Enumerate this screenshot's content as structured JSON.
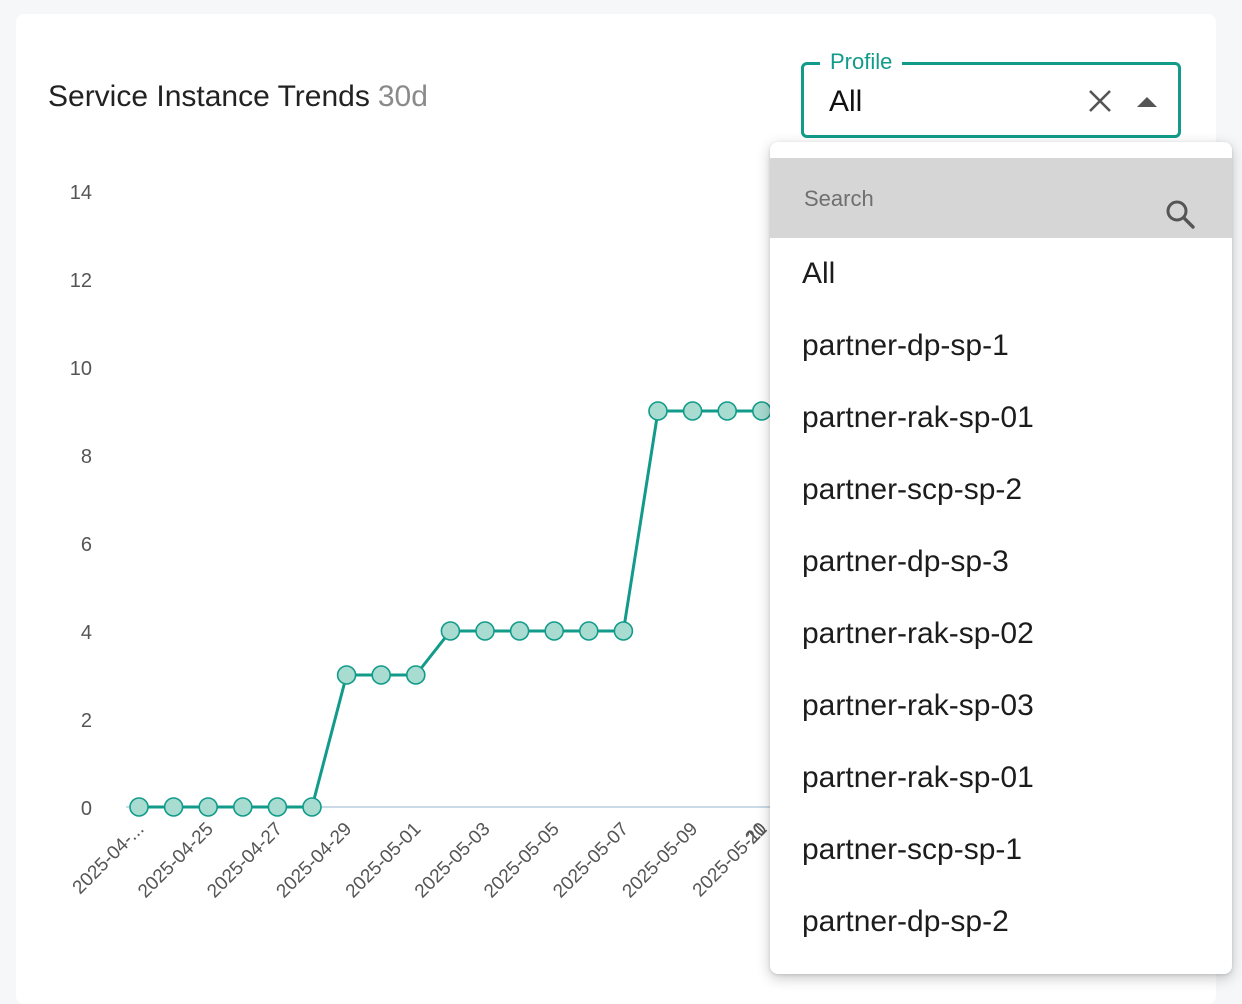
{
  "card": {
    "title": "Service Instance Trends",
    "period": "30d"
  },
  "profile": {
    "label": "Profile",
    "value": "All",
    "clear_icon": "close-icon",
    "toggle_icon": "arrow-up-icon"
  },
  "dropdown": {
    "search_placeholder": "Search",
    "search_icon": "search-icon",
    "options": [
      "All",
      "partner-dp-sp-1",
      "partner-rak-sp-01",
      "partner-scp-sp-2",
      "partner-dp-sp-3",
      "partner-rak-sp-02",
      "partner-rak-sp-03",
      "partner-rak-sp-01",
      "partner-scp-sp-1",
      "partner-dp-sp-2"
    ]
  },
  "colors": {
    "accent": "#129b8a",
    "point_fill": "#a8dcd1",
    "baseline": "#b8cfe0"
  },
  "chart_data": {
    "type": "line",
    "title": "",
    "xlabel": "",
    "ylabel": "",
    "ylim": [
      0,
      14
    ],
    "yticks": [
      0,
      2,
      4,
      6,
      8,
      10,
      12,
      14
    ],
    "grid": false,
    "x_tick_labels": [
      "2025-04-...",
      "2025-04-25",
      "2025-04-27",
      "2025-04-29",
      "2025-05-01",
      "2025-05-03",
      "2025-05-05",
      "2025-05-07",
      "2025-05-09",
      "2025-05-11"
    ],
    "x": [
      "2025-04-23",
      "2025-04-24",
      "2025-04-25",
      "2025-04-26",
      "2025-04-27",
      "2025-04-28",
      "2025-04-29",
      "2025-04-30",
      "2025-05-01",
      "2025-05-02",
      "2025-05-03",
      "2025-05-04",
      "2025-05-05",
      "2025-05-06",
      "2025-05-07",
      "2025-05-08",
      "2025-05-09",
      "2025-05-10",
      "2025-05-11"
    ],
    "series": [
      {
        "values": [
          0,
          0,
          0,
          0,
          0,
          0,
          3,
          3,
          3,
          4,
          4,
          4,
          4,
          4,
          4,
          9,
          9,
          9,
          9
        ]
      }
    ]
  }
}
